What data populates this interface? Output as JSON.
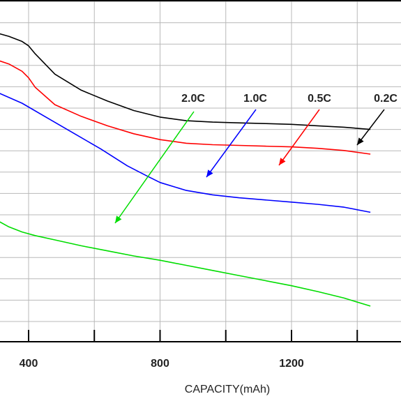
{
  "chart_data": {
    "type": "line",
    "xlabel": "CAPACITY(mAh)",
    "xlim": [
      300,
      1440
    ],
    "x_ticks": [
      400,
      800,
      1200
    ],
    "x_tick_labels": [
      "400",
      "800",
      "1200"
    ],
    "grid": true,
    "series": [
      {
        "name": "0.2C",
        "color": "#000000",
        "x": [
          300,
          340,
          380,
          400,
          420,
          480,
          560,
          640,
          720,
          800,
          880,
          960,
          1040,
          1120,
          1200,
          1280,
          1360,
          1440
        ],
        "y": [
          0.905,
          0.9,
          0.893,
          0.887,
          0.876,
          0.848,
          0.826,
          0.811,
          0.798,
          0.789,
          0.784,
          0.782,
          0.781,
          0.78,
          0.779,
          0.777,
          0.775,
          0.772
        ]
      },
      {
        "name": "0.5C",
        "color": "#ff0000",
        "x": [
          300,
          340,
          380,
          400,
          420,
          480,
          560,
          640,
          720,
          800,
          880,
          960,
          1040,
          1120,
          1200,
          1280,
          1360,
          1440
        ],
        "y": [
          0.868,
          0.862,
          0.852,
          0.843,
          0.83,
          0.806,
          0.79,
          0.777,
          0.766,
          0.758,
          0.753,
          0.751,
          0.75,
          0.749,
          0.748,
          0.746,
          0.743,
          0.738
        ]
      },
      {
        "name": "1.0C",
        "color": "#0000ff",
        "x": [
          300,
          380,
          460,
          540,
          620,
          700,
          760,
          800,
          880,
          960,
          1040,
          1120,
          1200,
          1280,
          1360,
          1440
        ],
        "y": [
          0.824,
          0.808,
          0.787,
          0.766,
          0.745,
          0.722,
          0.708,
          0.699,
          0.688,
          0.682,
          0.678,
          0.675,
          0.672,
          0.669,
          0.665,
          0.658
        ]
      },
      {
        "name": "2.0C",
        "color": "#00dd00",
        "x": [
          300,
          340,
          380,
          420,
          480,
          560,
          640,
          720,
          800,
          880,
          960,
          1040,
          1120,
          1200,
          1280,
          1360,
          1440
        ],
        "y": [
          0.648,
          0.638,
          0.631,
          0.626,
          0.62,
          0.612,
          0.605,
          0.598,
          0.592,
          0.585,
          0.578,
          0.571,
          0.564,
          0.557,
          0.549,
          0.54,
          0.529
        ]
      }
    ],
    "annotations": [
      {
        "text": "2.0C",
        "series": "2.0C",
        "color": "#00dd00"
      },
      {
        "text": "1.0C",
        "series": "1.0C",
        "color": "#0000ff"
      },
      {
        "text": "0.5C",
        "series": "0.5C",
        "color": "#ff0000"
      },
      {
        "text": "0.2C",
        "series": "0.2C",
        "color": "#000000"
      }
    ]
  }
}
